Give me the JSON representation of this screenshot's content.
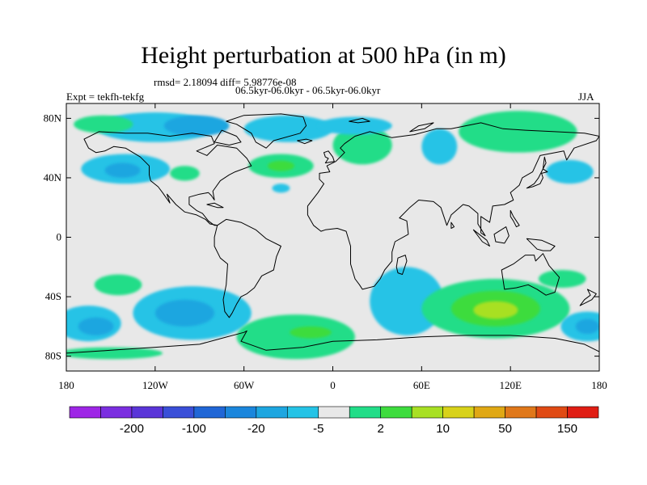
{
  "title": "Height perturbation at 500 hPa (in m)",
  "stats": "rmsd= 2.18094 diff= 5.98776e-08",
  "expt": "Expt = tekfh-tekfg",
  "period": "06.5kyr-06.0kyr - 06.5kyr-06.0kyr",
  "season": "JJA",
  "x_ticks": [
    {
      "lon": -180,
      "label": "180"
    },
    {
      "lon": -120,
      "label": "120W"
    },
    {
      "lon": -60,
      "label": "60W"
    },
    {
      "lon": 0,
      "label": "0"
    },
    {
      "lon": 60,
      "label": "60E"
    },
    {
      "lon": 120,
      "label": "120E"
    },
    {
      "lon": 180,
      "label": "180"
    }
  ],
  "y_ticks": [
    {
      "lat": 80,
      "label": "80N"
    },
    {
      "lat": 40,
      "label": "40N"
    },
    {
      "lat": 0,
      "label": "0"
    },
    {
      "lat": -40,
      "label": "40S"
    },
    {
      "lat": -80,
      "label": "80S"
    }
  ],
  "colorbar": {
    "colors": [
      "#9e26e6",
      "#7b2ee0",
      "#5a35d8",
      "#3a4fd8",
      "#2066d6",
      "#1b86dc",
      "#1ea6e0",
      "#25c3e6",
      "#e8e8e8",
      "#22dd88",
      "#3edc3e",
      "#a8e024",
      "#d8d21a",
      "#e0a814",
      "#e0781a",
      "#e04a14",
      "#e01e14"
    ],
    "labels": [
      {
        "after": 1,
        "text": "-200"
      },
      {
        "after": 3,
        "text": "-100"
      },
      {
        "after": 5,
        "text": "-20"
      },
      {
        "after": 7,
        "text": "-5"
      },
      {
        "after": 9,
        "text": "2"
      },
      {
        "after": 11,
        "text": "10"
      },
      {
        "after": 13,
        "text": "50"
      },
      {
        "after": 15,
        "text": "150"
      }
    ]
  },
  "blobs": [
    {
      "lon": -140,
      "lat": 46,
      "rx": 30,
      "ry": 10,
      "color": "#25c3e6"
    },
    {
      "lon": -142,
      "lat": 45,
      "rx": 12,
      "ry": 5,
      "color": "#1ea6e0"
    },
    {
      "lon": -120,
      "lat": 74,
      "rx": 40,
      "ry": 10,
      "color": "#25c3e6"
    },
    {
      "lon": -92,
      "lat": 75,
      "rx": 22,
      "ry": 7,
      "color": "#1ea6e0"
    },
    {
      "lon": -155,
      "lat": 76,
      "rx": 20,
      "ry": 6,
      "color": "#22dd88"
    },
    {
      "lon": -100,
      "lat": 43,
      "rx": 10,
      "ry": 5,
      "color": "#22dd88"
    },
    {
      "lon": -35,
      "lat": 48,
      "rx": 22,
      "ry": 8,
      "color": "#22dd88"
    },
    {
      "lon": -35,
      "lat": 48,
      "rx": 9,
      "ry": 3.5,
      "color": "#3edc3e"
    },
    {
      "lon": -35,
      "lat": 33,
      "rx": 6,
      "ry": 3,
      "color": "#25c3e6"
    },
    {
      "lon": -30,
      "lat": 73,
      "rx": 30,
      "ry": 9,
      "color": "#25c3e6"
    },
    {
      "lon": 20,
      "lat": 62,
      "rx": 20,
      "ry": 13,
      "color": "#22dd88"
    },
    {
      "lon": 15,
      "lat": 75,
      "rx": 25,
      "ry": 6,
      "color": "#25c3e6"
    },
    {
      "lon": 72,
      "lat": 61,
      "rx": 12,
      "ry": 12,
      "color": "#25c3e6"
    },
    {
      "lon": 125,
      "lat": 71,
      "rx": 40,
      "ry": 14,
      "color": "#22dd88"
    },
    {
      "lon": 160,
      "lat": 44,
      "rx": 16,
      "ry": 8,
      "color": "#25c3e6"
    },
    {
      "lon": -145,
      "lat": -32,
      "rx": 16,
      "ry": 7,
      "color": "#22dd88"
    },
    {
      "lon": -95,
      "lat": -51,
      "rx": 40,
      "ry": 18,
      "color": "#25c3e6"
    },
    {
      "lon": -100,
      "lat": -51,
      "rx": 20,
      "ry": 9,
      "color": "#1ea6e0"
    },
    {
      "lon": -165,
      "lat": -58,
      "rx": 22,
      "ry": 12,
      "color": "#25c3e6"
    },
    {
      "lon": -160,
      "lat": -60,
      "rx": 12,
      "ry": 6,
      "color": "#1ea6e0"
    },
    {
      "lon": -25,
      "lat": -67,
      "rx": 40,
      "ry": 15,
      "color": "#22dd88"
    },
    {
      "lon": -15,
      "lat": -64,
      "rx": 14,
      "ry": 4,
      "color": "#3edc3e"
    },
    {
      "lon": 50,
      "lat": -43,
      "rx": 25,
      "ry": 23,
      "color": "#25c3e6"
    },
    {
      "lon": 110,
      "lat": -48,
      "rx": 50,
      "ry": 20,
      "color": "#22dd88"
    },
    {
      "lon": 110,
      "lat": -48,
      "rx": 30,
      "ry": 12,
      "color": "#3edc3e"
    },
    {
      "lon": 110,
      "lat": -49,
      "rx": 15,
      "ry": 6,
      "color": "#a8e024"
    },
    {
      "lon": 172,
      "lat": -60,
      "rx": 18,
      "ry": 10,
      "color": "#25c3e6"
    },
    {
      "lon": 172,
      "lat": -60,
      "rx": 8,
      "ry": 5,
      "color": "#1ea6e0"
    },
    {
      "lon": 155,
      "lat": -28,
      "rx": 16,
      "ry": 6,
      "color": "#22dd88"
    },
    {
      "lon": -150,
      "lat": -78,
      "rx": 35,
      "ry": 4,
      "color": "#22dd88"
    }
  ],
  "coastlines": [
    {
      "name": "north-america",
      "pts": [
        [
          -168,
          66
        ],
        [
          -158,
          71
        ],
        [
          -140,
          70
        ],
        [
          -125,
          70
        ],
        [
          -110,
          68
        ],
        [
          -95,
          70
        ],
        [
          -82,
          68
        ],
        [
          -80,
          63
        ],
        [
          -92,
          58
        ],
        [
          -85,
          55
        ],
        [
          -78,
          62
        ],
        [
          -65,
          60
        ],
        [
          -58,
          53
        ],
        [
          -55,
          48
        ],
        [
          -66,
          44
        ],
        [
          -70,
          42
        ],
        [
          -76,
          38
        ],
        [
          -81,
          31
        ],
        [
          -80,
          25
        ],
        [
          -82,
          28
        ],
        [
          -84,
          30
        ],
        [
          -90,
          29
        ],
        [
          -97,
          27
        ],
        [
          -97,
          22
        ],
        [
          -92,
          18
        ],
        [
          -88,
          16
        ],
        [
          -84,
          11
        ],
        [
          -80,
          8
        ],
        [
          -78,
          8
        ],
        [
          -83,
          9
        ],
        [
          -86,
          12
        ],
        [
          -92,
          15
        ],
        [
          -100,
          17
        ],
        [
          -106,
          22
        ],
        [
          -112,
          29
        ],
        [
          -110,
          23
        ],
        [
          -115,
          30
        ],
        [
          -118,
          34
        ],
        [
          -123,
          38
        ],
        [
          -124,
          42
        ],
        [
          -124,
          48
        ],
        [
          -130,
          54
        ],
        [
          -140,
          60
        ],
        [
          -148,
          61
        ],
        [
          -154,
          58
        ],
        [
          -160,
          57
        ],
        [
          -165,
          60
        ],
        [
          -168,
          66
        ]
      ]
    },
    {
      "name": "south-america",
      "pts": [
        [
          -78,
          8
        ],
        [
          -72,
          12
        ],
        [
          -62,
          10
        ],
        [
          -52,
          5
        ],
        [
          -45,
          -1
        ],
        [
          -35,
          -6
        ],
        [
          -38,
          -13
        ],
        [
          -40,
          -22
        ],
        [
          -48,
          -26
        ],
        [
          -53,
          -34
        ],
        [
          -58,
          -38
        ],
        [
          -62,
          -40
        ],
        [
          -65,
          -45
        ],
        [
          -68,
          -51
        ],
        [
          -70,
          -54
        ],
        [
          -73,
          -50
        ],
        [
          -74,
          -42
        ],
        [
          -72,
          -32
        ],
        [
          -71,
          -18
        ],
        [
          -76,
          -14
        ],
        [
          -80,
          -6
        ],
        [
          -80,
          0
        ],
        [
          -78,
          8
        ]
      ]
    },
    {
      "name": "greenland",
      "pts": [
        [
          -72,
          78
        ],
        [
          -60,
          82
        ],
        [
          -35,
          83
        ],
        [
          -20,
          81
        ],
        [
          -18,
          75
        ],
        [
          -22,
          70
        ],
        [
          -40,
          65
        ],
        [
          -45,
          60
        ],
        [
          -52,
          64
        ],
        [
          -55,
          70
        ],
        [
          -65,
          76
        ],
        [
          -72,
          78
        ]
      ]
    },
    {
      "name": "afro-eurasia",
      "pts": [
        [
          -17,
          15
        ],
        [
          -17,
          21
        ],
        [
          -10,
          30
        ],
        [
          -6,
          36
        ],
        [
          -9,
          39
        ],
        [
          -9,
          43
        ],
        [
          -2,
          44
        ],
        [
          -4,
          48
        ],
        [
          2,
          51
        ],
        [
          5,
          54
        ],
        [
          8,
          57
        ],
        [
          5,
          60
        ],
        [
          8,
          63
        ],
        [
          15,
          68
        ],
        [
          25,
          71
        ],
        [
          40,
          67
        ],
        [
          55,
          69
        ],
        [
          70,
          73
        ],
        [
          80,
          73
        ],
        [
          100,
          77
        ],
        [
          115,
          73
        ],
        [
          130,
          72
        ],
        [
          150,
          71
        ],
        [
          170,
          70
        ],
        [
          180,
          68
        ],
        [
          178,
          65
        ],
        [
          163,
          60
        ],
        [
          158,
          52
        ],
        [
          156,
          58
        ],
        [
          140,
          55
        ],
        [
          135,
          44
        ],
        [
          128,
          40
        ],
        [
          126,
          35
        ],
        [
          120,
          30
        ],
        [
          122,
          25
        ],
        [
          116,
          22
        ],
        [
          108,
          21
        ],
        [
          106,
          10
        ],
        [
          100,
          14
        ],
        [
          100,
          3
        ],
        [
          103,
          1
        ],
        [
          98,
          9
        ],
        [
          98,
          16
        ],
        [
          92,
          21
        ],
        [
          88,
          22
        ],
        [
          80,
          15
        ],
        [
          77,
          8
        ],
        [
          73,
          20
        ],
        [
          68,
          24
        ],
        [
          58,
          25
        ],
        [
          52,
          20
        ],
        [
          45,
          13
        ],
        [
          50,
          11
        ],
        [
          51,
          2
        ],
        [
          42,
          -3
        ],
        [
          40,
          -10
        ],
        [
          40,
          -16
        ],
        [
          35,
          -22
        ],
        [
          32,
          -28
        ],
        [
          28,
          -33
        ],
        [
          20,
          -35
        ],
        [
          18,
          -32
        ],
        [
          15,
          -28
        ],
        [
          12,
          -18
        ],
        [
          12,
          -6
        ],
        [
          9,
          4
        ],
        [
          3,
          6
        ],
        [
          -5,
          5
        ],
        [
          -8,
          4
        ],
        [
          -13,
          8
        ],
        [
          -17,
          15
        ]
      ]
    },
    {
      "name": "madagascar",
      "pts": [
        [
          44,
          -14
        ],
        [
          49,
          -12
        ],
        [
          50,
          -16
        ],
        [
          47,
          -25
        ],
        [
          44,
          -24
        ],
        [
          43,
          -20
        ],
        [
          44,
          -14
        ]
      ]
    },
    {
      "name": "australia",
      "pts": [
        [
          114,
          -22
        ],
        [
          122,
          -18
        ],
        [
          130,
          -12
        ],
        [
          136,
          -12
        ],
        [
          137,
          -16
        ],
        [
          142,
          -11
        ],
        [
          146,
          -19
        ],
        [
          153,
          -27
        ],
        [
          150,
          -37
        ],
        [
          144,
          -39
        ],
        [
          138,
          -35
        ],
        [
          132,
          -32
        ],
        [
          124,
          -34
        ],
        [
          116,
          -35
        ],
        [
          114,
          -22
        ]
      ]
    },
    {
      "name": "britain",
      "pts": [
        [
          -5,
          50
        ],
        [
          1,
          51
        ],
        [
          0,
          54
        ],
        [
          -3,
          58
        ],
        [
          -6,
          57
        ],
        [
          -5,
          54
        ],
        [
          -3,
          53
        ],
        [
          -5,
          50
        ]
      ]
    },
    {
      "name": "japan",
      "pts": [
        [
          131,
          33
        ],
        [
          135,
          34
        ],
        [
          140,
          36
        ],
        [
          142,
          40
        ],
        [
          141,
          43
        ],
        [
          145,
          44
        ],
        [
          142,
          46
        ],
        [
          139,
          40
        ],
        [
          136,
          36
        ],
        [
          131,
          33
        ]
      ]
    },
    {
      "name": "new-zealand",
      "pts": [
        [
          172,
          -35
        ],
        [
          178,
          -38
        ],
        [
          175,
          -42
        ],
        [
          171,
          -44
        ],
        [
          167,
          -46
        ],
        [
          170,
          -42
        ],
        [
          174,
          -39
        ],
        [
          172,
          -35
        ]
      ]
    },
    {
      "name": "antarctica",
      "pts": [
        [
          -180,
          -78
        ],
        [
          -150,
          -76
        ],
        [
          -120,
          -74
        ],
        [
          -90,
          -72
        ],
        [
          -75,
          -68
        ],
        [
          -60,
          -64
        ],
        [
          -58,
          -63
        ],
        [
          -62,
          -70
        ],
        [
          -45,
          -76
        ],
        [
          -20,
          -74
        ],
        [
          0,
          -70
        ],
        [
          30,
          -69
        ],
        [
          60,
          -67
        ],
        [
          90,
          -66
        ],
        [
          120,
          -66
        ],
        [
          150,
          -68
        ],
        [
          170,
          -72
        ],
        [
          180,
          -77
        ]
      ]
    },
    {
      "name": "baffin",
      "pts": [
        [
          -80,
          64
        ],
        [
          -75,
          72
        ],
        [
          -65,
          68
        ],
        [
          -62,
          64
        ],
        [
          -70,
          62
        ],
        [
          -80,
          64
        ]
      ]
    },
    {
      "name": "borneo",
      "pts": [
        [
          109,
          2
        ],
        [
          117,
          7
        ],
        [
          119,
          1
        ],
        [
          116,
          -4
        ],
        [
          110,
          -3
        ],
        [
          109,
          2
        ]
      ]
    },
    {
      "name": "sumatra",
      "pts": [
        [
          95,
          5
        ],
        [
          104,
          -2
        ],
        [
          106,
          -6
        ],
        [
          101,
          -3
        ],
        [
          95,
          5
        ]
      ]
    },
    {
      "name": "new-guinea",
      "pts": [
        [
          131,
          -1
        ],
        [
          141,
          -2
        ],
        [
          150,
          -6
        ],
        [
          147,
          -9
        ],
        [
          142,
          -9
        ],
        [
          138,
          -8
        ],
        [
          131,
          -1
        ]
      ]
    },
    {
      "name": "svalbard",
      "pts": [
        [
          11,
          78
        ],
        [
          20,
          80
        ],
        [
          25,
          78
        ],
        [
          17,
          77
        ],
        [
          11,
          78
        ]
      ]
    },
    {
      "name": "novaya-zemlya",
      "pts": [
        [
          52,
          71
        ],
        [
          58,
          75
        ],
        [
          68,
          77
        ],
        [
          62,
          73
        ],
        [
          52,
          71
        ]
      ]
    },
    {
      "name": "iceland",
      "pts": [
        [
          -24,
          65
        ],
        [
          -18,
          66
        ],
        [
          -14,
          65
        ],
        [
          -19,
          63
        ],
        [
          -24,
          65
        ]
      ]
    },
    {
      "name": "cuba",
      "pts": [
        [
          -85,
          22
        ],
        [
          -80,
          23
        ],
        [
          -74,
          20
        ],
        [
          -78,
          20
        ],
        [
          -85,
          22
        ]
      ]
    },
    {
      "name": "sri-lanka",
      "pts": [
        [
          80,
          10
        ],
        [
          82,
          7
        ],
        [
          80,
          6
        ],
        [
          80,
          10
        ]
      ]
    },
    {
      "name": "philippines",
      "pts": [
        [
          120,
          18
        ],
        [
          122,
          14
        ],
        [
          126,
          8
        ],
        [
          124,
          7
        ],
        [
          122,
          11
        ],
        [
          120,
          14
        ],
        [
          120,
          18
        ]
      ]
    },
    {
      "name": "sakhalin",
      "pts": [
        [
          142,
          46
        ],
        [
          143,
          54
        ],
        [
          144,
          50
        ],
        [
          142,
          46
        ]
      ]
    }
  ]
}
